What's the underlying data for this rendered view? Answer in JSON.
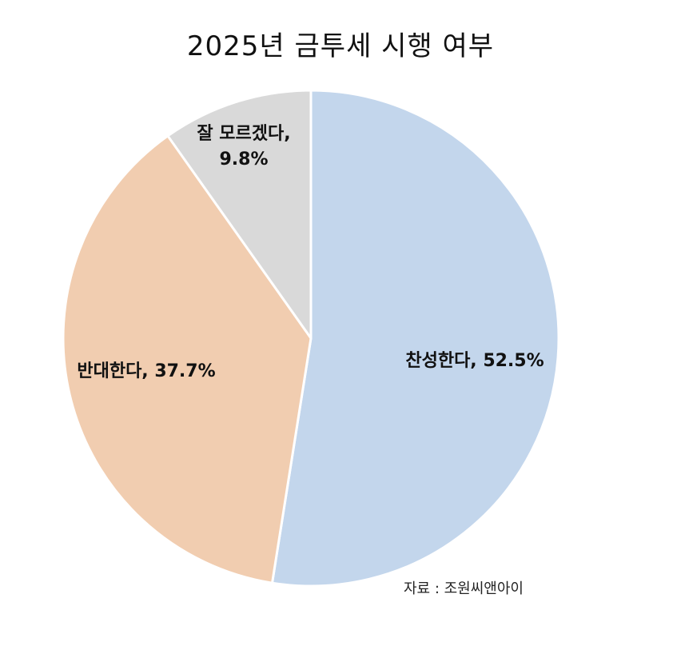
{
  "chart_data": {
    "type": "pie",
    "title": "2025년 금투세 시행 여부",
    "slices": [
      {
        "label": "찬성한다",
        "value": 52.5,
        "label_lines": [
          "찬성한다, 52.5%"
        ],
        "color": "#c3d6ec"
      },
      {
        "label": "반대한다",
        "value": 37.7,
        "label_lines": [
          "반대한다, 37.7%"
        ],
        "color": "#f1cdb0"
      },
      {
        "label": "잘 모르겠다",
        "value": 9.8,
        "label_lines": [
          "잘 모르겠다,",
          "9.8%"
        ],
        "color": "#d9d9d9"
      }
    ],
    "start": "12 o'clock",
    "direction": "clockwise",
    "legend": "none",
    "source": "자료 : 조원씨앤아이"
  }
}
